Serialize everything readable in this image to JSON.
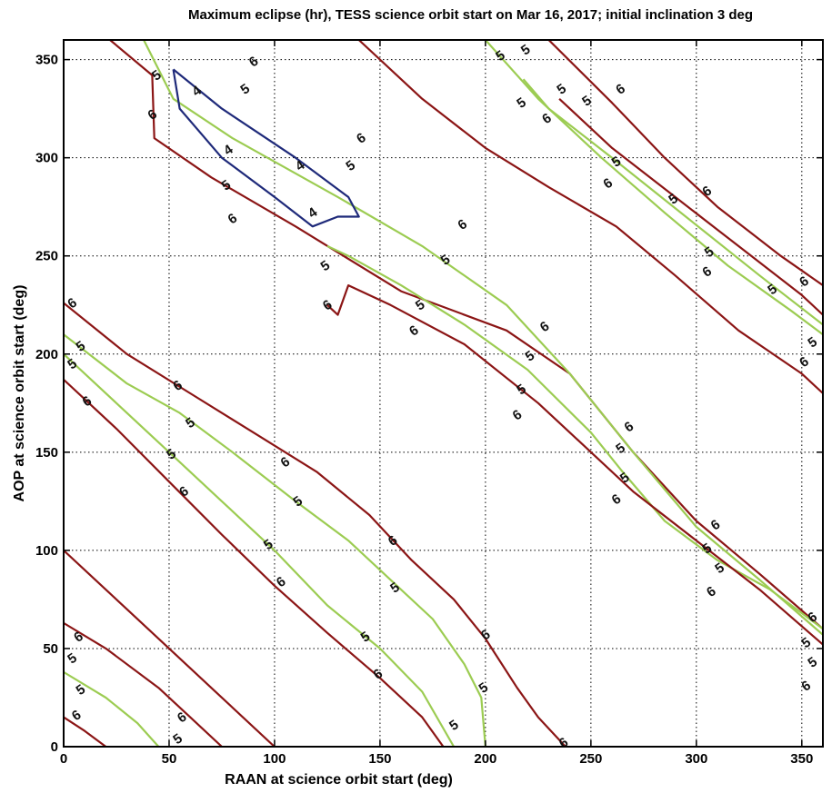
{
  "chart_data": {
    "type": "contour",
    "title": "Maximum eclipse (hr), TESS science orbit start on Mar 16, 2017; initial inclination 3 deg",
    "xlabel": "RAAN at science orbit start (deg)",
    "ylabel": "AOP at science orbit start (deg)",
    "xlim": [
      0,
      360
    ],
    "ylim": [
      0,
      360
    ],
    "xticks": [
      0,
      50,
      100,
      150,
      200,
      250,
      300,
      350
    ],
    "yticks": [
      0,
      50,
      100,
      150,
      200,
      250,
      300,
      350
    ],
    "grid": true,
    "level_colors": {
      "4": "#1f2a7a",
      "5": "#9ccc52",
      "6": "#8b1515"
    },
    "contours": [
      {
        "level": 6,
        "points": [
          [
            0,
            63
          ],
          [
            20,
            50
          ],
          [
            45,
            30
          ],
          [
            60,
            15
          ],
          [
            75,
            0
          ]
        ]
      },
      {
        "level": 5,
        "points": [
          [
            0,
            38
          ],
          [
            20,
            25
          ],
          [
            35,
            12
          ],
          [
            45,
            0
          ]
        ]
      },
      {
        "level": 6,
        "points": [
          [
            0,
            15
          ],
          [
            10,
            8
          ],
          [
            20,
            0
          ]
        ]
      },
      {
        "level": 6,
        "points": [
          [
            0,
            226
          ],
          [
            30,
            200
          ],
          [
            60,
            180
          ],
          [
            90,
            160
          ],
          [
            120,
            140
          ],
          [
            145,
            118
          ],
          [
            165,
            95
          ],
          [
            185,
            75
          ],
          [
            200,
            55
          ],
          [
            215,
            30
          ],
          [
            225,
            15
          ],
          [
            238,
            0
          ]
        ]
      },
      {
        "level": 5,
        "points": [
          [
            0,
            210
          ],
          [
            30,
            185
          ],
          [
            55,
            170
          ],
          [
            80,
            150
          ],
          [
            110,
            125
          ],
          [
            135,
            105
          ],
          [
            155,
            85
          ],
          [
            175,
            65
          ],
          [
            190,
            42
          ],
          [
            198,
            25
          ],
          [
            200,
            0
          ]
        ]
      },
      {
        "level": 5,
        "points": [
          [
            0,
            200
          ],
          [
            25,
            175
          ],
          [
            50,
            150
          ],
          [
            75,
            125
          ],
          [
            100,
            100
          ],
          [
            125,
            72
          ],
          [
            150,
            50
          ],
          [
            170,
            28
          ],
          [
            185,
            0
          ]
        ]
      },
      {
        "level": 6,
        "points": [
          [
            0,
            187
          ],
          [
            25,
            162
          ],
          [
            50,
            135
          ],
          [
            75,
            108
          ],
          [
            100,
            82
          ],
          [
            125,
            58
          ],
          [
            150,
            35
          ],
          [
            170,
            15
          ],
          [
            180,
            0
          ]
        ]
      },
      {
        "level": 6,
        "points": [
          [
            0,
            100
          ],
          [
            30,
            70
          ],
          [
            60,
            40
          ],
          [
            100,
            0
          ]
        ]
      },
      {
        "level": 6,
        "points": [
          [
            22,
            360
          ],
          [
            42,
            342
          ],
          [
            43,
            310
          ],
          [
            70,
            290
          ],
          [
            110,
            265
          ],
          [
            160,
            232
          ],
          [
            210,
            212
          ],
          [
            240,
            190
          ],
          [
            270,
            150
          ],
          [
            300,
            115
          ],
          [
            330,
            88
          ],
          [
            360,
            60
          ]
        ]
      },
      {
        "level": 5,
        "points": [
          [
            38,
            360
          ],
          [
            52,
            330
          ],
          [
            80,
            310
          ],
          [
            130,
            280
          ],
          [
            170,
            255
          ],
          [
            210,
            225
          ],
          [
            240,
            190
          ],
          [
            270,
            150
          ],
          [
            300,
            112
          ],
          [
            330,
            85
          ],
          [
            360,
            57
          ]
        ]
      },
      {
        "level": 5,
        "points": [
          [
            125,
            255
          ],
          [
            135,
            250
          ],
          [
            160,
            235
          ],
          [
            190,
            215
          ],
          [
            220,
            192
          ],
          [
            250,
            160
          ],
          [
            265,
            140
          ],
          [
            285,
            115
          ],
          [
            310,
            95
          ],
          [
            335,
            80
          ],
          [
            360,
            60
          ]
        ]
      },
      {
        "level": 6,
        "points": [
          [
            125,
            225
          ],
          [
            130,
            220
          ],
          [
            135,
            235
          ],
          [
            155,
            225
          ],
          [
            190,
            205
          ],
          [
            225,
            175
          ],
          [
            250,
            150
          ],
          [
            270,
            130
          ],
          [
            300,
            105
          ],
          [
            330,
            80
          ],
          [
            360,
            52
          ]
        ]
      },
      {
        "level": 4,
        "points": [
          [
            52,
            345
          ],
          [
            75,
            325
          ],
          [
            110,
            300
          ],
          [
            135,
            280
          ],
          [
            140,
            270
          ],
          [
            130,
            270
          ],
          [
            118,
            265
          ],
          [
            100,
            280
          ],
          [
            75,
            300
          ],
          [
            55,
            325
          ],
          [
            52,
            345
          ]
        ]
      },
      {
        "level": 6,
        "points": [
          [
            140,
            360
          ],
          [
            170,
            330
          ],
          [
            200,
            305
          ],
          [
            230,
            285
          ],
          [
            262,
            265
          ],
          [
            290,
            240
          ],
          [
            320,
            212
          ],
          [
            350,
            190
          ],
          [
            360,
            180
          ]
        ]
      },
      {
        "level": 5,
        "points": [
          [
            200,
            360
          ],
          [
            225,
            330
          ],
          [
            255,
            300
          ],
          [
            285,
            272
          ],
          [
            315,
            245
          ],
          [
            345,
            222
          ],
          [
            360,
            210
          ]
        ]
      },
      {
        "level": 6,
        "points": [
          [
            230,
            360
          ],
          [
            260,
            328
          ],
          [
            285,
            300
          ],
          [
            310,
            275
          ],
          [
            340,
            250
          ],
          [
            360,
            235
          ]
        ]
      },
      {
        "level": 5,
        "points": [
          [
            218,
            340
          ],
          [
            230,
            325
          ],
          [
            260,
            300
          ],
          [
            295,
            270
          ],
          [
            330,
            240
          ],
          [
            360,
            215
          ]
        ]
      },
      {
        "level": 6,
        "points": [
          [
            235,
            330
          ],
          [
            260,
            305
          ],
          [
            290,
            280
          ],
          [
            320,
            255
          ],
          [
            350,
            230
          ],
          [
            360,
            220
          ]
        ]
      }
    ],
    "labels": [
      {
        "level": 6,
        "x": 4,
        "y": 226
      },
      {
        "level": 5,
        "x": 8,
        "y": 204
      },
      {
        "level": 5,
        "x": 4,
        "y": 195
      },
      {
        "level": 6,
        "x": 11,
        "y": 176
      },
      {
        "level": 6,
        "x": 54,
        "y": 184
      },
      {
        "level": 5,
        "x": 60,
        "y": 165
      },
      {
        "level": 5,
        "x": 51,
        "y": 149
      },
      {
        "level": 6,
        "x": 57,
        "y": 130
      },
      {
        "level": 6,
        "x": 105,
        "y": 145
      },
      {
        "level": 5,
        "x": 111,
        "y": 125
      },
      {
        "level": 5,
        "x": 97,
        "y": 103
      },
      {
        "level": 6,
        "x": 103,
        "y": 84
      },
      {
        "level": 6,
        "x": 156,
        "y": 105
      },
      {
        "level": 5,
        "x": 157,
        "y": 81
      },
      {
        "level": 5,
        "x": 143,
        "y": 56
      },
      {
        "level": 6,
        "x": 149,
        "y": 37
      },
      {
        "level": 6,
        "x": 200,
        "y": 57
      },
      {
        "level": 5,
        "x": 199,
        "y": 30
      },
      {
        "level": 5,
        "x": 185,
        "y": 11
      },
      {
        "level": 6,
        "x": 237,
        "y": 2
      },
      {
        "level": 6,
        "x": 7,
        "y": 56
      },
      {
        "level": 5,
        "x": 4,
        "y": 45
      },
      {
        "level": 5,
        "x": 8,
        "y": 29
      },
      {
        "level": 6,
        "x": 6,
        "y": 16
      },
      {
        "level": 6,
        "x": 56,
        "y": 15
      },
      {
        "level": 5,
        "x": 54,
        "y": 4
      },
      {
        "level": 6,
        "x": 90,
        "y": 349
      },
      {
        "level": 5,
        "x": 86,
        "y": 335
      },
      {
        "level": 5,
        "x": 44,
        "y": 342
      },
      {
        "level": 6,
        "x": 42,
        "y": 322
      },
      {
        "level": 4,
        "x": 63,
        "y": 334
      },
      {
        "level": 4,
        "x": 78,
        "y": 304
      },
      {
        "level": 4,
        "x": 112,
        "y": 296
      },
      {
        "level": 4,
        "x": 118,
        "y": 272
      },
      {
        "level": 5,
        "x": 77,
        "y": 286
      },
      {
        "level": 6,
        "x": 80,
        "y": 269
      },
      {
        "level": 6,
        "x": 141,
        "y": 310
      },
      {
        "level": 5,
        "x": 136,
        "y": 296
      },
      {
        "level": 6,
        "x": 189,
        "y": 266
      },
      {
        "level": 5,
        "x": 181,
        "y": 248
      },
      {
        "level": 5,
        "x": 124,
        "y": 245
      },
      {
        "level": 6,
        "x": 125,
        "y": 225
      },
      {
        "level": 5,
        "x": 169,
        "y": 225
      },
      {
        "level": 6,
        "x": 166,
        "y": 212
      },
      {
        "level": 6,
        "x": 228,
        "y": 214
      },
      {
        "level": 5,
        "x": 221,
        "y": 199
      },
      {
        "level": 5,
        "x": 217,
        "y": 182
      },
      {
        "level": 6,
        "x": 215,
        "y": 169
      },
      {
        "level": 6,
        "x": 268,
        "y": 163
      },
      {
        "level": 5,
        "x": 264,
        "y": 152
      },
      {
        "level": 5,
        "x": 266,
        "y": 137
      },
      {
        "level": 6,
        "x": 262,
        "y": 126
      },
      {
        "level": 6,
        "x": 309,
        "y": 113
      },
      {
        "level": 5,
        "x": 305,
        "y": 101
      },
      {
        "level": 5,
        "x": 311,
        "y": 91
      },
      {
        "level": 6,
        "x": 307,
        "y": 79
      },
      {
        "level": 6,
        "x": 355,
        "y": 66
      },
      {
        "level": 5,
        "x": 352,
        "y": 53
      },
      {
        "level": 5,
        "x": 355,
        "y": 43
      },
      {
        "level": 6,
        "x": 352,
        "y": 31
      },
      {
        "level": 5,
        "x": 207,
        "y": 352
      },
      {
        "level": 5,
        "x": 219,
        "y": 355
      },
      {
        "level": 6,
        "x": 264,
        "y": 335
      },
      {
        "level": 5,
        "x": 236,
        "y": 335
      },
      {
        "level": 5,
        "x": 248,
        "y": 329
      },
      {
        "level": 5,
        "x": 217,
        "y": 328
      },
      {
        "level": 6,
        "x": 229,
        "y": 320
      },
      {
        "level": 5,
        "x": 262,
        "y": 298
      },
      {
        "level": 6,
        "x": 258,
        "y": 287
      },
      {
        "level": 5,
        "x": 289,
        "y": 279
      },
      {
        "level": 6,
        "x": 305,
        "y": 283
      },
      {
        "level": 5,
        "x": 306,
        "y": 252
      },
      {
        "level": 6,
        "x": 305,
        "y": 242
      },
      {
        "level": 5,
        "x": 336,
        "y": 233
      },
      {
        "level": 6,
        "x": 351,
        "y": 237
      },
      {
        "level": 5,
        "x": 355,
        "y": 206
      },
      {
        "level": 6,
        "x": 351,
        "y": 196
      }
    ]
  }
}
